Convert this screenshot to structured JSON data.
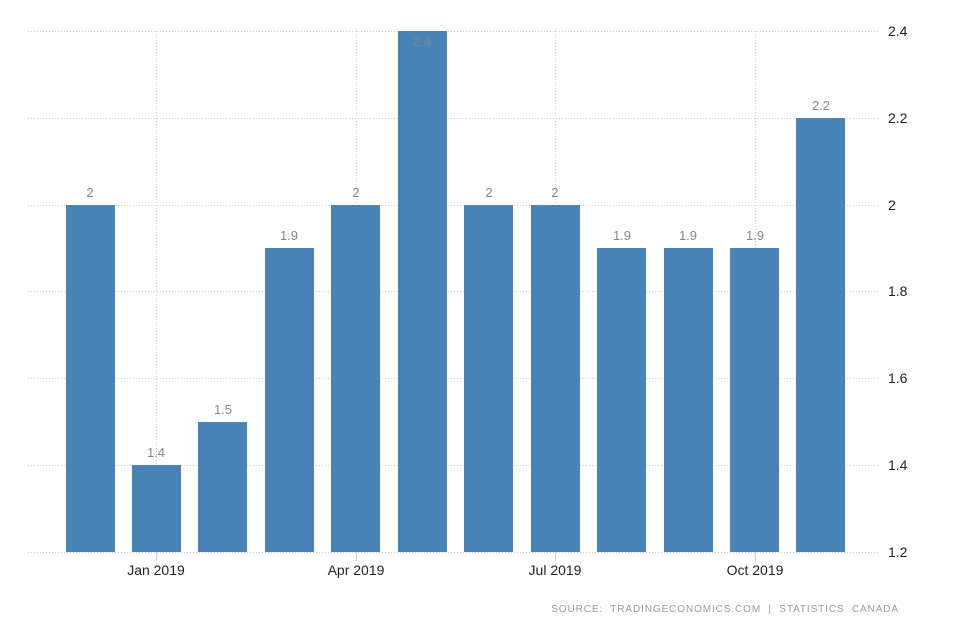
{
  "chart_data": {
    "type": "bar",
    "title": "",
    "values": [
      2,
      1.4,
      1.5,
      1.9,
      2,
      2.4,
      2,
      2,
      1.9,
      1.9,
      1.9,
      2.2
    ],
    "bar_labels": [
      "2",
      "1.4",
      "1.5",
      "1.9",
      "2",
      "2.4",
      "2",
      "2",
      "1.9",
      "1.9",
      "1.9",
      "2.2"
    ],
    "x_ticks": [
      {
        "label": "Jan 2019",
        "bar_index": 1
      },
      {
        "label": "Apr 2019",
        "bar_index": 4
      },
      {
        "label": "Jul 2019",
        "bar_index": 7
      },
      {
        "label": "Oct 2019",
        "bar_index": 10
      }
    ],
    "y_ticks": [
      {
        "label": "1.2",
        "value": 1.2
      },
      {
        "label": "1.4",
        "value": 1.4
      },
      {
        "label": "1.6",
        "value": 1.6
      },
      {
        "label": "1.8",
        "value": 1.8
      },
      {
        "label": "2",
        "value": 2
      },
      {
        "label": "2.2",
        "value": 2.2
      },
      {
        "label": "2.4",
        "value": 2.4
      }
    ],
    "ylim": [
      1.2,
      2.4
    ],
    "grid": "dotted",
    "legend": "none",
    "y_axis_position": "right",
    "colors": {
      "bar": "#4884b7",
      "grid": "#cfcfcf",
      "axis_label": "#222222",
      "value_label": "#858585",
      "source_text": "#9a9a9a"
    }
  },
  "footer": {
    "source_text": "SOURCE:  TRADINGECONOMICS.COM  |  STATISTICS  CANADA"
  }
}
